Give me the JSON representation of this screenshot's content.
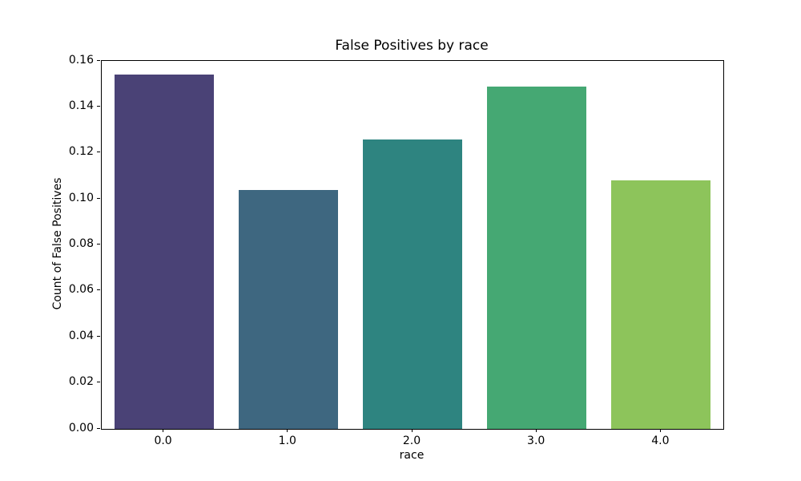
{
  "chart_data": {
    "type": "bar",
    "title": "False Positives by race",
    "xlabel": "race",
    "ylabel": "Count of False Positives",
    "categories": [
      "0.0",
      "1.0",
      "2.0",
      "3.0",
      "4.0"
    ],
    "values": [
      0.154,
      0.104,
      0.126,
      0.149,
      0.108
    ],
    "bar_colors": [
      "#4a4276",
      "#3e6780",
      "#2e8480",
      "#45a873",
      "#8dc45b"
    ],
    "ylim": [
      0,
      0.16
    ],
    "ytick_labels": [
      "0.00",
      "0.02",
      "0.04",
      "0.06",
      "0.08",
      "0.10",
      "0.12",
      "0.14",
      "0.16"
    ],
    "ytick_values": [
      0.0,
      0.02,
      0.04,
      0.06,
      0.08,
      0.1,
      0.12,
      0.14,
      0.16
    ],
    "grid": false,
    "legend_position": "none",
    "bar_width_fraction": 0.8,
    "background_color": "#ffffff",
    "spine_color": "#000000"
  }
}
